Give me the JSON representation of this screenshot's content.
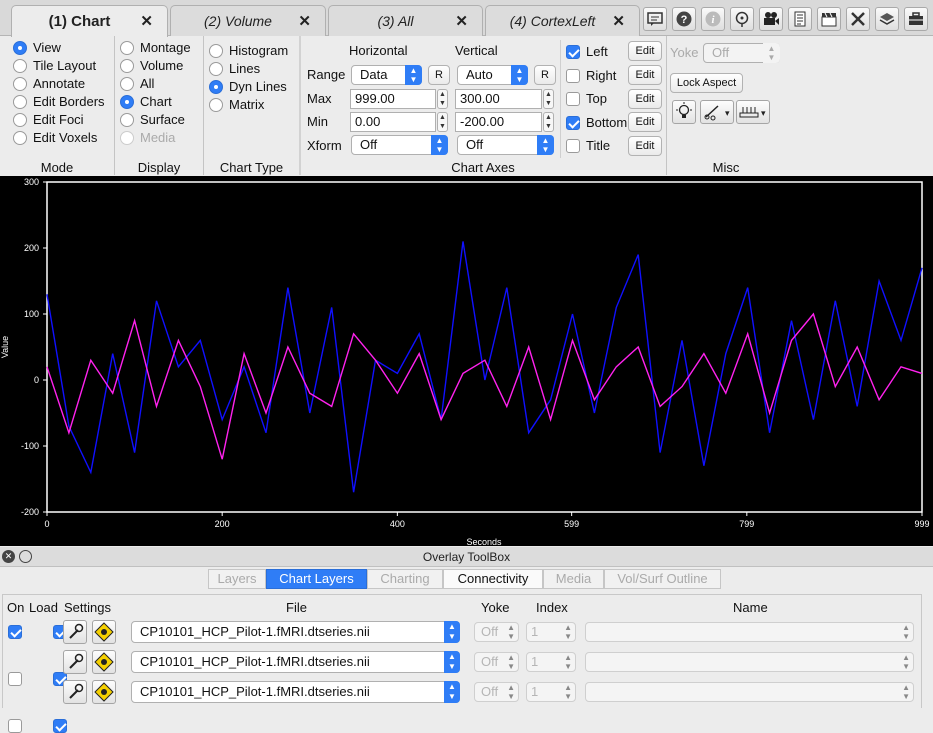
{
  "tabs": [
    {
      "label": "(1) Chart",
      "close": "✕"
    },
    {
      "label": "(2) Volume",
      "close": "✕"
    },
    {
      "label": "(3) All",
      "close": "✕"
    },
    {
      "label": "(4) CortexLeft",
      "close": "✕"
    }
  ],
  "toolbar": {
    "icons": [
      "feedback-icon",
      "help-icon",
      "info-icon",
      "identify-icon",
      "movie-icon",
      "scene-icon",
      "clapper-icon",
      "tools-icon",
      "layers-icon",
      "toolbox-icon"
    ]
  },
  "mode": {
    "section": "Mode",
    "items": [
      {
        "label": "View",
        "selected": true
      },
      {
        "label": "Tile Layout",
        "selected": false
      },
      {
        "label": "Annotate",
        "selected": false
      },
      {
        "label": "Edit Borders",
        "selected": false
      },
      {
        "label": "Edit Foci",
        "selected": false
      },
      {
        "label": "Edit Voxels",
        "selected": false
      }
    ]
  },
  "display": {
    "section": "Display",
    "items": [
      {
        "label": "Montage",
        "selected": false
      },
      {
        "label": "Volume",
        "selected": false
      },
      {
        "label": "All",
        "selected": false
      },
      {
        "label": "Chart",
        "selected": true
      },
      {
        "label": "Surface",
        "selected": false
      },
      {
        "label": "Media",
        "selected": false,
        "disabled": true
      }
    ]
  },
  "chart_type": {
    "section": "Chart Type",
    "items": [
      {
        "label": "Histogram",
        "selected": false
      },
      {
        "label": "Lines",
        "selected": false
      },
      {
        "label": "Dyn Lines",
        "selected": true
      },
      {
        "label": "Matrix",
        "selected": false
      }
    ]
  },
  "chart_axes": {
    "section": "Chart Axes",
    "horizontal_header": "Horizontal",
    "vertical_header": "Vertical",
    "range_label": "Range",
    "max_label": "Max",
    "min_label": "Min",
    "xform_label": "Xform",
    "h_range": "Data",
    "v_range": "Auto",
    "reset_label": "R",
    "h_max": "999.00",
    "v_max": "300.00",
    "h_min": "0.00",
    "v_min": "-200.00",
    "h_xform": "Off",
    "v_xform": "Off",
    "sides": [
      {
        "label": "Left",
        "checked": true
      },
      {
        "label": "Right",
        "checked": false
      },
      {
        "label": "Top",
        "checked": false
      },
      {
        "label": "Bottom",
        "checked": true
      },
      {
        "label": "Title",
        "checked": false
      }
    ],
    "edit_label": "Edit"
  },
  "misc": {
    "section": "Misc",
    "yoke_label": "Yoke",
    "yoke_value": "Off",
    "lock_aspect": "Lock Aspect"
  },
  "chart_data": {
    "type": "line",
    "xlabel": "Seconds",
    "ylabel": "Value",
    "xlim": [
      0,
      999
    ],
    "ylim": [
      -200,
      300
    ],
    "x_ticks": [
      "0",
      "200",
      "400",
      "599",
      "799",
      "999"
    ],
    "x_tick_values": [
      0,
      200,
      400,
      599,
      799,
      999
    ],
    "y_ticks": [
      "300",
      "200",
      "100",
      "0",
      "-100",
      "-200"
    ],
    "y_tick_values": [
      300,
      200,
      100,
      0,
      -100,
      -200
    ],
    "series": [
      {
        "name": "blue-series",
        "color": "#1010ff",
        "x": [
          0,
          25,
          50,
          75,
          100,
          125,
          150,
          175,
          200,
          225,
          250,
          275,
          300,
          325,
          350,
          375,
          400,
          425,
          450,
          475,
          500,
          525,
          550,
          575,
          600,
          625,
          650,
          675,
          700,
          725,
          750,
          775,
          800,
          825,
          850,
          875,
          900,
          925,
          950,
          975,
          999
        ],
        "values": [
          130,
          -70,
          -140,
          40,
          -110,
          120,
          20,
          60,
          -60,
          20,
          -80,
          140,
          -50,
          110,
          -170,
          30,
          10,
          70,
          -60,
          210,
          0,
          140,
          -80,
          -30,
          100,
          -50,
          110,
          190,
          -110,
          60,
          -130,
          40,
          140,
          -80,
          90,
          -60,
          120,
          -40,
          150,
          60,
          170
        ]
      },
      {
        "name": "magenta-series",
        "color": "#ff22ee",
        "x": [
          0,
          25,
          50,
          75,
          100,
          125,
          150,
          175,
          200,
          225,
          250,
          275,
          300,
          325,
          350,
          375,
          400,
          425,
          450,
          475,
          500,
          525,
          550,
          575,
          600,
          625,
          650,
          675,
          700,
          725,
          750,
          775,
          800,
          825,
          850,
          875,
          900,
          925,
          950,
          975,
          999
        ],
        "values": [
          20,
          -80,
          30,
          -20,
          90,
          -40,
          60,
          -10,
          -120,
          40,
          -50,
          50,
          -20,
          -40,
          70,
          30,
          -20,
          40,
          -60,
          10,
          30,
          -40,
          50,
          -60,
          60,
          -30,
          20,
          50,
          -40,
          -10,
          40,
          -20,
          70,
          -50,
          60,
          100,
          -10,
          50,
          -30,
          20,
          10
        ]
      }
    ]
  },
  "overlay": {
    "title": "Overlay ToolBox",
    "tabs": [
      {
        "label": "Layers",
        "state": "disabled"
      },
      {
        "label": "Chart Layers",
        "state": "active"
      },
      {
        "label": "Charting",
        "state": "disabled"
      },
      {
        "label": "Connectivity",
        "state": "enabled"
      },
      {
        "label": "Media",
        "state": "disabled"
      },
      {
        "label": "Vol/Surf Outline",
        "state": "disabled"
      }
    ],
    "headers": {
      "on": "On",
      "load": "Load",
      "settings": "Settings",
      "file": "File",
      "yoke": "Yoke",
      "index": "Index",
      "name": "Name"
    },
    "rows": [
      {
        "on": true,
        "load": true,
        "file": "CP10101_HCP_Pilot-1.fMRI.dtseries.nii",
        "yoke": "Off",
        "index": "1"
      },
      {
        "on": false,
        "load": true,
        "file": "CP10101_HCP_Pilot-1.fMRI.dtseries.nii",
        "yoke": "Off",
        "index": "1"
      },
      {
        "on": false,
        "load": true,
        "file": "CP10101_HCP_Pilot-1.fMRI.dtseries.nii",
        "yoke": "Off",
        "index": "1"
      }
    ]
  }
}
